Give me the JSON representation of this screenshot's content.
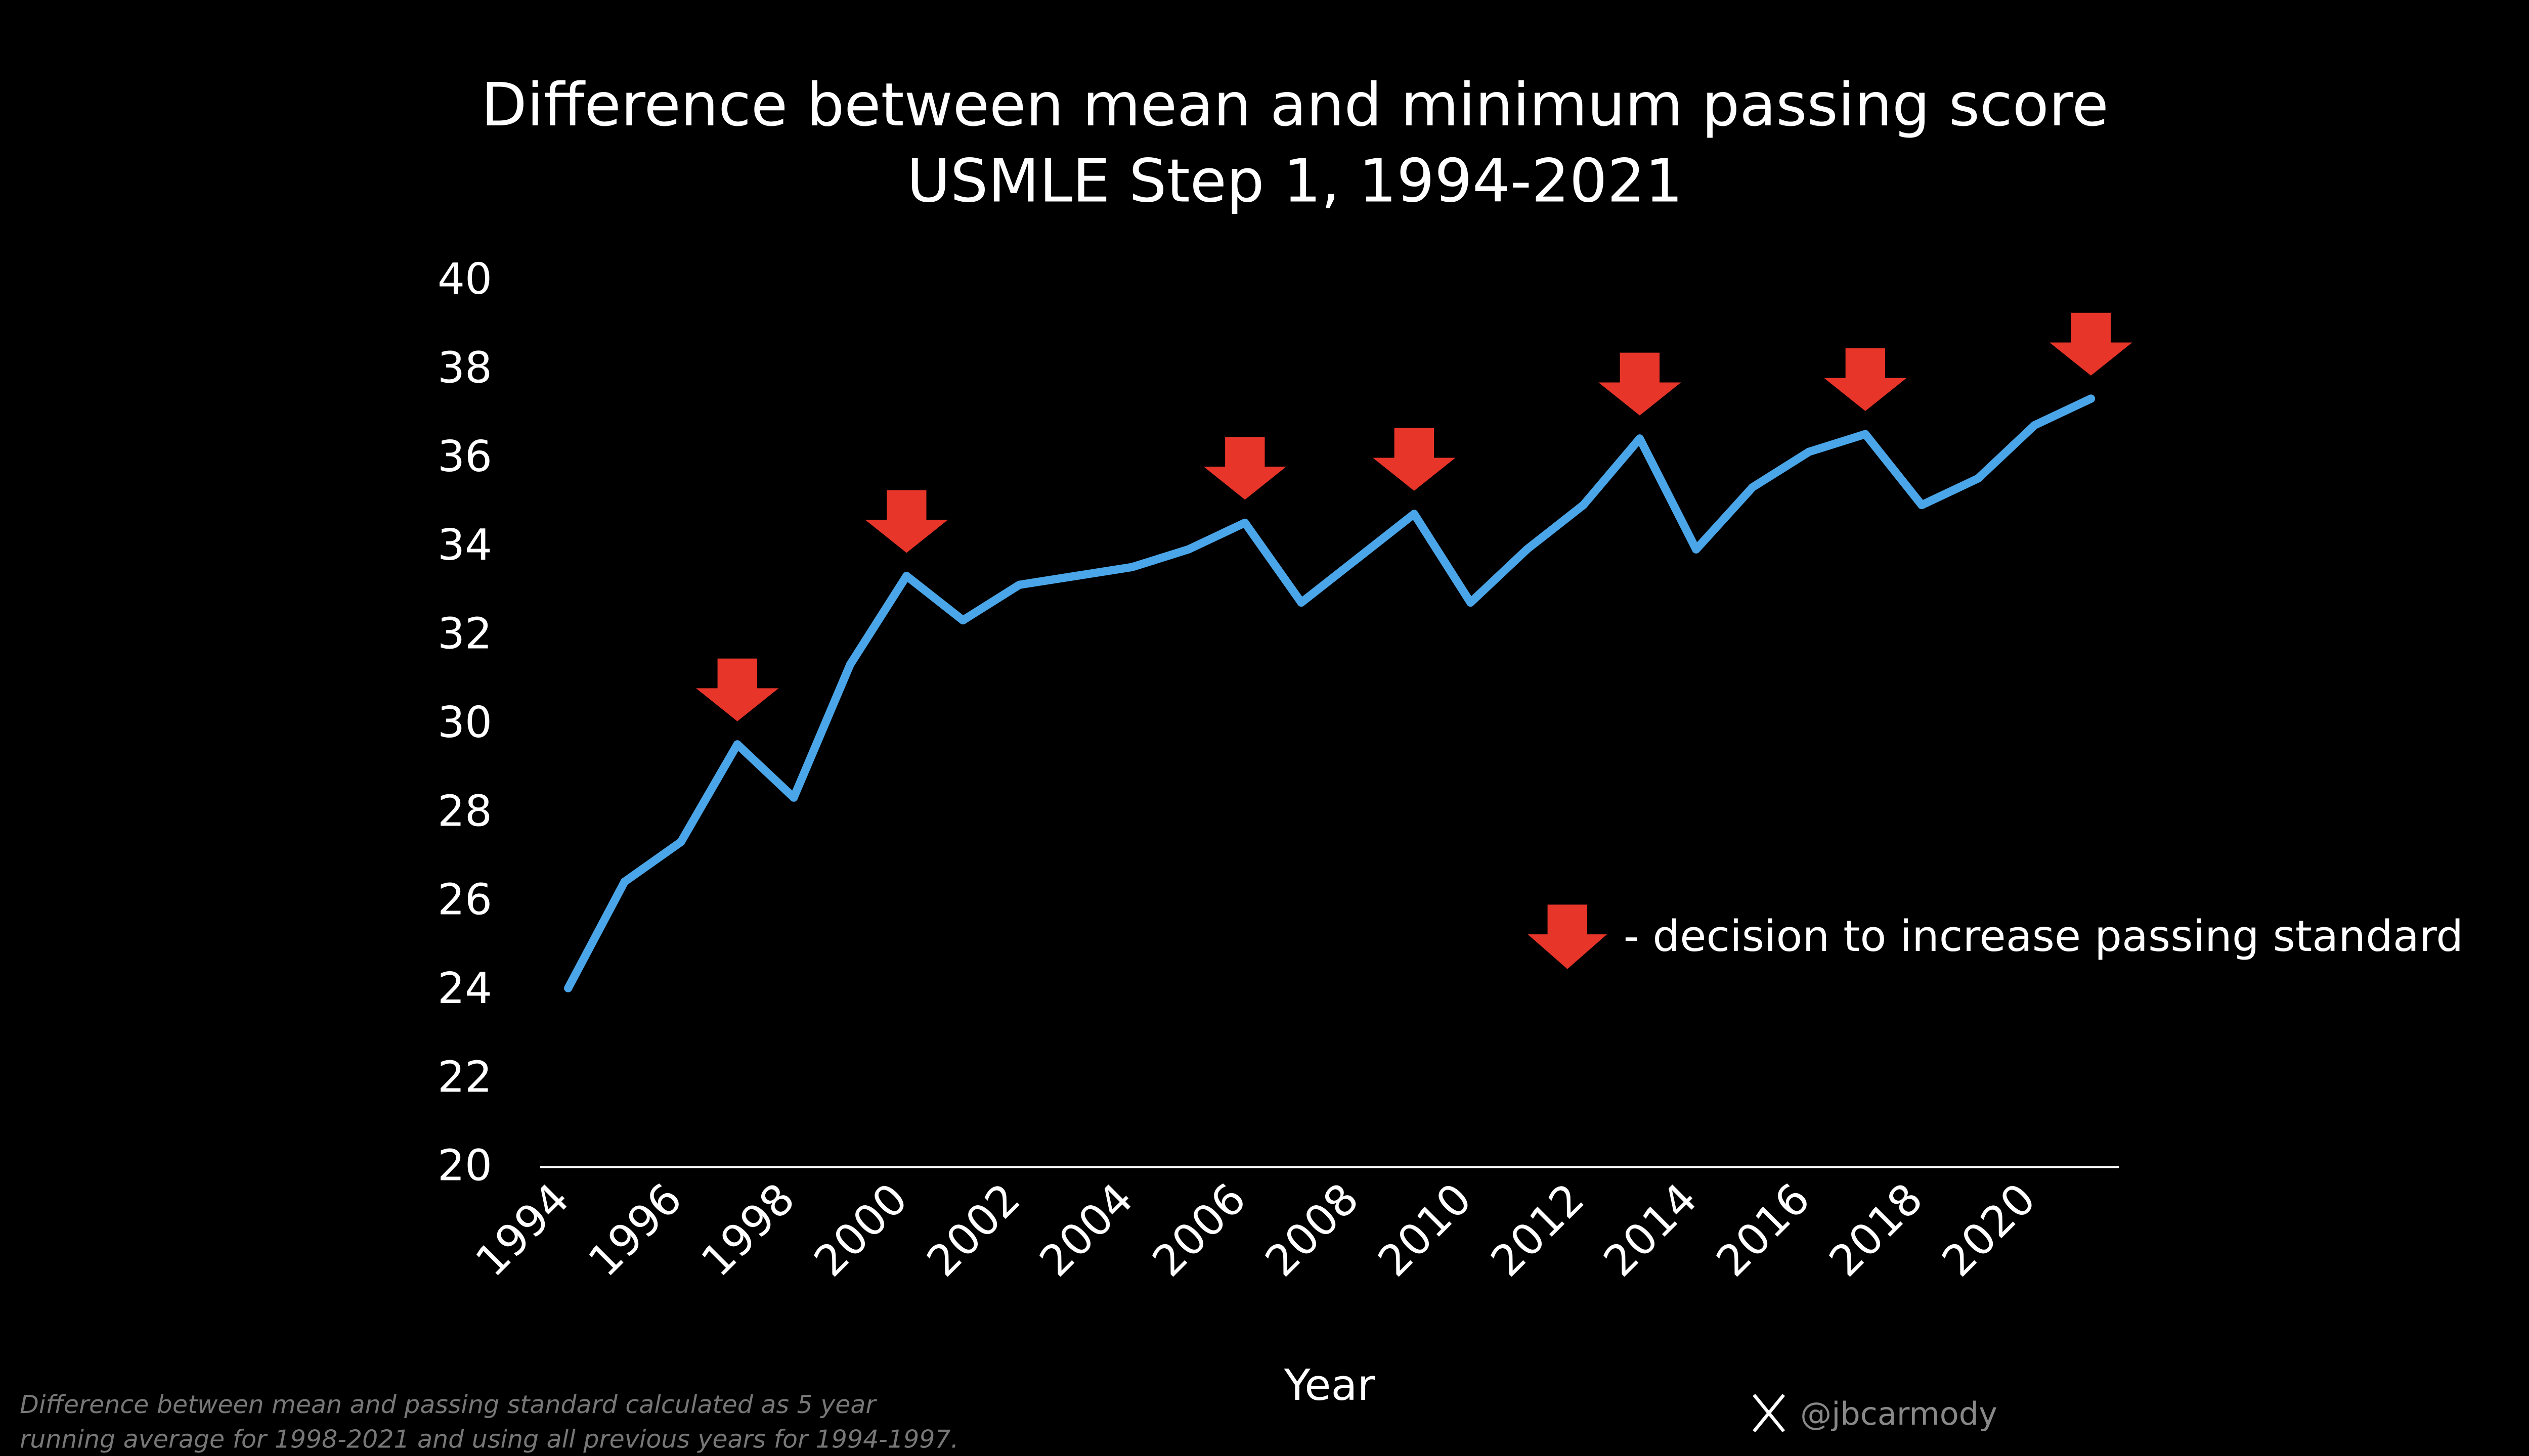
{
  "chart_data": {
    "type": "line",
    "title": "Difference between mean and minimum passing score",
    "subtitle": "USMLE Step 1, 1994-2021",
    "xlabel": "Year",
    "ylabel": "",
    "ylim": [
      20,
      40
    ],
    "yticks": [
      "20",
      "22",
      "24",
      "26",
      "28",
      "30",
      "32",
      "34",
      "36",
      "38",
      "40"
    ],
    "xticks": [
      "1994",
      "1996",
      "1998",
      "2000",
      "2002",
      "2004",
      "2006",
      "2008",
      "2010",
      "2012",
      "2014",
      "2016",
      "2018",
      "2020"
    ],
    "grid": false,
    "x": [
      1994,
      1995,
      1996,
      1997,
      1998,
      1999,
      2000,
      2001,
      2002,
      2003,
      2004,
      2005,
      2006,
      2007,
      2008,
      2009,
      2010,
      2011,
      2012,
      2013,
      2014,
      2015,
      2016,
      2017,
      2018,
      2019,
      2020,
      2021
    ],
    "values": [
      24.0,
      26.4,
      27.3,
      29.5,
      28.3,
      31.3,
      33.3,
      32.3,
      33.1,
      33.3,
      33.5,
      33.9,
      34.5,
      32.7,
      33.7,
      34.7,
      32.7,
      33.9,
      34.9,
      36.4,
      33.9,
      35.3,
      36.1,
      36.5,
      34.9,
      35.5,
      36.7,
      37.3
    ],
    "line_color": "#4aa6e8",
    "annotations": {
      "arrow_years": [
        1997,
        2000,
        2006,
        2009,
        2013,
        2017,
        2021
      ],
      "arrow_color": "#e8352a",
      "legend_text": "- decision to increase passing standard"
    }
  },
  "footnote": {
    "line1": "Difference between mean and passing standard calculated as 5 year",
    "line2": "running average for 1998-2021 and using all previous years for 1994-1997."
  },
  "credit": {
    "icon": "x-logo-icon",
    "handle": "@jbcarmody"
  }
}
